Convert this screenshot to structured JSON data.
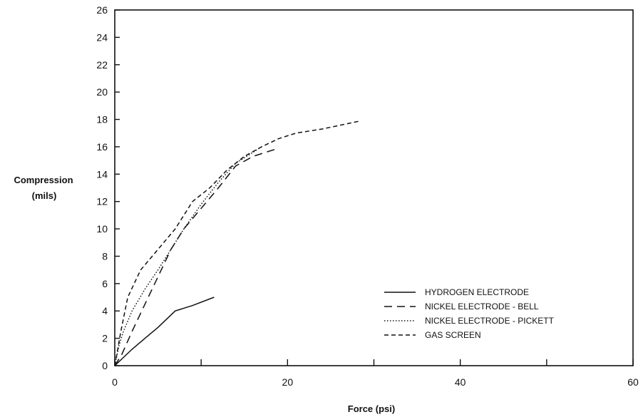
{
  "chart_data": {
    "type": "line",
    "xlabel": "Force (psi)",
    "ylabel_lines": [
      "Compression",
      "(mils)"
    ],
    "xlim": [
      0,
      60
    ],
    "ylim": [
      0,
      26
    ],
    "x_ticks": [
      0,
      20,
      40,
      60
    ],
    "x_minor_ticks": [
      10,
      30,
      50
    ],
    "y_ticks": [
      0,
      2,
      4,
      6,
      8,
      10,
      12,
      14,
      16,
      18,
      20,
      22,
      24,
      26
    ],
    "grid": false,
    "legend_position": "bottom-right",
    "series": [
      {
        "name": "HYDROGEN ELECTRODE",
        "line_style": "solid",
        "color": "#111111",
        "points": [
          [
            0,
            0
          ],
          [
            1,
            0.6
          ],
          [
            2,
            1.2
          ],
          [
            3.5,
            2
          ],
          [
            5,
            2.8
          ],
          [
            7,
            4
          ],
          [
            9,
            4.4
          ],
          [
            11.5,
            5
          ]
        ]
      },
      {
        "name": "NICKEL ELECTRODE - BELL",
        "line_style": "long-dash",
        "color": "#111111",
        "points": [
          [
            0,
            0
          ],
          [
            0.8,
            0.8
          ],
          [
            2,
            2.5
          ],
          [
            3.5,
            4.5
          ],
          [
            5,
            6.5
          ],
          [
            6.5,
            8.5
          ],
          [
            8,
            10
          ],
          [
            10,
            11.5
          ],
          [
            12,
            13
          ],
          [
            14,
            14.6
          ],
          [
            16,
            15.3
          ],
          [
            19,
            15.9
          ]
        ]
      },
      {
        "name": "NICKEL ELECTRODE - PICKETT",
        "line_style": "dotted",
        "color": "#111111",
        "points": [
          [
            0,
            0
          ],
          [
            0.5,
            1.5
          ],
          [
            1,
            2.5
          ],
          [
            2,
            4
          ],
          [
            3.5,
            5.6
          ],
          [
            5,
            7
          ],
          [
            6.5,
            8.5
          ],
          [
            8,
            10
          ],
          [
            10,
            11.8
          ],
          [
            12,
            13.4
          ],
          [
            14,
            14.8
          ],
          [
            17,
            16
          ]
        ]
      },
      {
        "name": "GAS SCREEN",
        "line_style": "dashed",
        "color": "#111111",
        "points": [
          [
            0,
            0
          ],
          [
            0.7,
            2.5
          ],
          [
            1.5,
            5
          ],
          [
            3,
            7
          ],
          [
            5,
            8.5
          ],
          [
            7,
            10
          ],
          [
            9,
            12
          ],
          [
            11,
            13
          ],
          [
            13,
            14.3
          ],
          [
            15,
            15.3
          ],
          [
            17,
            16
          ],
          [
            19,
            16.6
          ],
          [
            21,
            17
          ],
          [
            24,
            17.3
          ],
          [
            28.5,
            17.9
          ]
        ]
      }
    ]
  }
}
